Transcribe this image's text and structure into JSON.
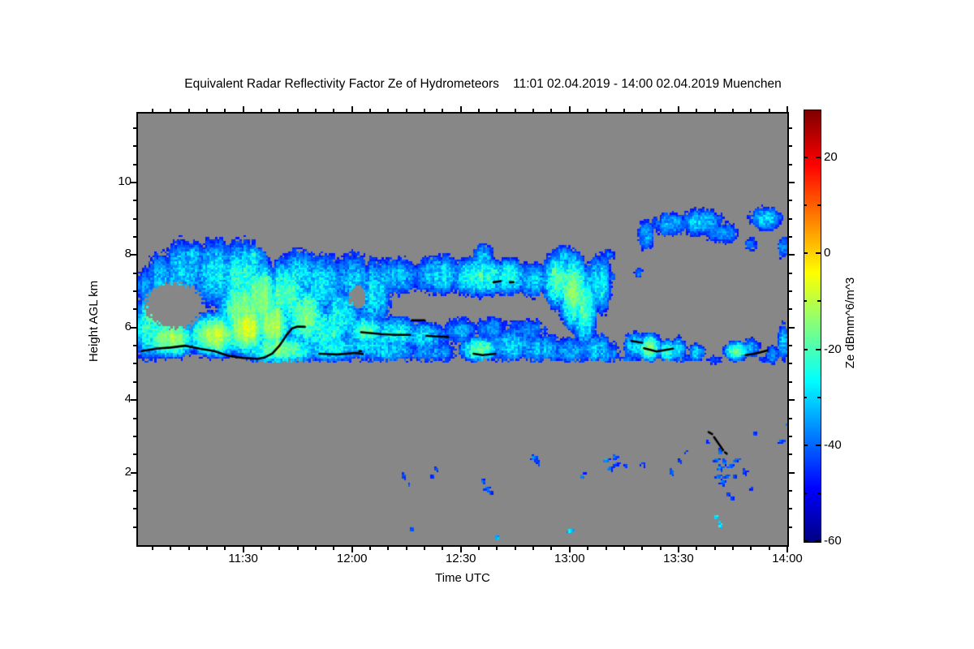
{
  "title": "Equivalent Radar Reflectivity Factor Ze of Hydrometeors    11:01 02.04.2019 - 14:00 02.04.2019 Muenchen",
  "axes": {
    "x": {
      "label": "Time UTC",
      "start": "11:01",
      "end": "14:00",
      "ticks": [
        {
          "t": 30,
          "label": "11:30"
        },
        {
          "t": 60,
          "label": "12:00"
        },
        {
          "t": 90,
          "label": "12:30"
        },
        {
          "t": 120,
          "label": "13:00"
        },
        {
          "t": 150,
          "label": "13:30"
        },
        {
          "t": 180,
          "label": "14:00"
        }
      ],
      "minor_step_minutes": 5
    },
    "y": {
      "label": "Height AGL km",
      "ticks": [
        2,
        4,
        6,
        8,
        10
      ],
      "minor_step_km": 0.5,
      "range_km": [
        0,
        11.9
      ]
    }
  },
  "colorbar": {
    "label": "Ze dBmm^6/m^3",
    "ticks": [
      20,
      0,
      -20,
      -40,
      -60
    ],
    "minor_ticks": [
      10,
      -10,
      -30,
      -50
    ],
    "vmin": -60,
    "vmax": 30,
    "colormap": "jet"
  },
  "colors": {
    "page_bg": "#ffffff",
    "plot_bg": "#878787",
    "frame": "#000000",
    "text": "#000000",
    "base_line": "#000000"
  },
  "chart_data": {
    "type": "heatmap",
    "units": "dBmm^6/m^3",
    "time_axis_minutes_after_1100": [
      1,
      180
    ],
    "height_axis_km": [
      0,
      11.9
    ],
    "echo_blobs": [
      [
        4,
        6.0,
        5,
        1.0,
        -22
      ],
      [
        3,
        7.1,
        4,
        0.55,
        -36
      ],
      [
        8,
        7.3,
        6,
        0.8,
        -33
      ],
      [
        14,
        7.6,
        7,
        0.9,
        -30
      ],
      [
        22,
        7.5,
        8,
        1.0,
        -28
      ],
      [
        30,
        7.3,
        8,
        1.2,
        -22
      ],
      [
        30,
        6.5,
        8,
        1.2,
        -14
      ],
      [
        22,
        5.8,
        9,
        0.7,
        -9
      ],
      [
        10,
        5.7,
        9,
        0.6,
        -13
      ],
      [
        31,
        6.0,
        7,
        0.9,
        -6
      ],
      [
        35,
        6.8,
        6,
        1.2,
        -12
      ],
      [
        38,
        6.1,
        6,
        1.0,
        -10
      ],
      [
        42,
        6.9,
        7,
        1.1,
        -18
      ],
      [
        47,
        6.3,
        7,
        1.0,
        -16
      ],
      [
        45,
        7.4,
        7,
        0.8,
        -28
      ],
      [
        52,
        7.2,
        6,
        0.9,
        -27
      ],
      [
        53,
        5.9,
        8,
        0.8,
        -22
      ],
      [
        57,
        6.3,
        6,
        0.9,
        -25
      ],
      [
        60,
        7.3,
        6,
        0.8,
        -31
      ],
      [
        66,
        6.9,
        5,
        1.1,
        -28
      ],
      [
        40,
        5.4,
        12,
        0.5,
        -15
      ],
      [
        55,
        5.45,
        10,
        0.45,
        -25
      ],
      [
        65,
        5.6,
        8,
        0.6,
        -28
      ],
      [
        16,
        8.0,
        4,
        0.35,
        -30
      ],
      [
        33,
        7.9,
        4,
        0.4,
        -26
      ],
      [
        64,
        7.2,
        6,
        0.5,
        -35
      ],
      [
        72,
        7.4,
        9,
        0.55,
        -33
      ],
      [
        84,
        7.45,
        8,
        0.6,
        -28
      ],
      [
        95,
        7.4,
        9,
        0.6,
        -21
      ],
      [
        96,
        7.95,
        3,
        0.4,
        -30
      ],
      [
        103,
        7.4,
        7,
        0.55,
        -25
      ],
      [
        110,
        7.3,
        6,
        0.5,
        -31
      ],
      [
        117,
        7.3,
        5,
        0.9,
        -18
      ],
      [
        118,
        7.95,
        3,
        0.35,
        -30
      ],
      [
        121,
        7.0,
        5,
        1.2,
        -14
      ],
      [
        124,
        6.6,
        4,
        1.3,
        -19
      ],
      [
        128,
        7.2,
        4,
        0.9,
        -27
      ],
      [
        64,
        5.9,
        6,
        0.5,
        -18
      ],
      [
        72,
        5.85,
        8,
        0.5,
        -26
      ],
      [
        80,
        5.75,
        7,
        0.45,
        -28
      ],
      [
        70,
        5.35,
        10,
        0.35,
        -31
      ],
      [
        82,
        5.3,
        8,
        0.3,
        -34
      ],
      [
        95,
        5.4,
        6,
        0.4,
        -16
      ],
      [
        104,
        5.5,
        8,
        0.5,
        -31
      ],
      [
        112,
        5.4,
        8,
        0.45,
        -33
      ],
      [
        120,
        5.35,
        7,
        0.4,
        -34
      ],
      [
        127,
        5.4,
        5,
        0.5,
        -31
      ],
      [
        90,
        5.9,
        5,
        0.4,
        -34
      ],
      [
        98,
        5.95,
        5,
        0.35,
        -36
      ],
      [
        108,
        5.9,
        6,
        0.35,
        -37
      ],
      [
        131,
        5.3,
        3,
        0.35,
        -36
      ],
      [
        138,
        5.5,
        3.5,
        0.4,
        -28
      ],
      [
        142,
        5.45,
        4,
        0.45,
        -15
      ],
      [
        147,
        5.35,
        3,
        0.35,
        -23
      ],
      [
        150,
        5.4,
        2.5,
        0.4,
        -27
      ],
      [
        155,
        5.3,
        2.5,
        0.3,
        -31
      ],
      [
        166,
        5.35,
        4,
        0.3,
        -17
      ],
      [
        170,
        5.45,
        2.5,
        0.3,
        -31
      ],
      [
        176,
        5.25,
        2.5,
        0.25,
        -36
      ],
      [
        179,
        5.6,
        2,
        0.55,
        -31
      ],
      [
        136,
        5.1,
        4,
        0.15,
        -41
      ],
      [
        152,
        5.15,
        3,
        0.15,
        -41
      ],
      [
        160,
        5.1,
        3,
        0.12,
        -43
      ],
      [
        174,
        5.1,
        2,
        0.12,
        -43
      ],
      [
        141,
        8.55,
        2.5,
        0.45,
        -34
      ],
      [
        148,
        8.85,
        6,
        0.35,
        -33
      ],
      [
        156,
        8.9,
        7,
        0.4,
        -31
      ],
      [
        162,
        8.6,
        5,
        0.3,
        -36
      ],
      [
        170,
        8.3,
        2,
        0.2,
        -39
      ],
      [
        174,
        9.0,
        5,
        0.35,
        -31
      ],
      [
        179,
        8.2,
        2,
        0.3,
        -37
      ],
      [
        131,
        8.0,
        1.5,
        0.2,
        -39
      ],
      [
        139,
        7.5,
        1.2,
        0.15,
        -39
      ],
      [
        131.5,
        7.4,
        1,
        0.15,
        -37
      ]
    ],
    "clear_holes": [
      [
        11,
        6.6,
        8,
        0.62
      ],
      [
        61.5,
        6.85,
        2.2,
        0.3
      ]
    ],
    "base_clip": {
      "t_max": 158,
      "z_range": [
        3.6,
        5.08
      ]
    },
    "cloud_base_lines": [
      [
        [
          2,
          5.35
        ],
        [
          6,
          5.42
        ],
        [
          10,
          5.45
        ],
        [
          14,
          5.5
        ],
        [
          18,
          5.42
        ],
        [
          22,
          5.35
        ],
        [
          26,
          5.22
        ],
        [
          30,
          5.16
        ],
        [
          34,
          5.14
        ],
        [
          36,
          5.18
        ]
      ],
      [
        [
          36,
          5.18
        ],
        [
          38,
          5.28
        ],
        [
          40,
          5.5
        ],
        [
          42,
          5.8
        ],
        [
          43.5,
          5.98
        ],
        [
          45,
          6.03
        ],
        [
          47,
          6.02
        ]
      ],
      [
        [
          51,
          5.28
        ],
        [
          56,
          5.26
        ],
        [
          61,
          5.3
        ],
        [
          63,
          5.27
        ]
      ],
      [
        [
          62,
          5.35
        ],
        [
          62.5,
          5.35
        ]
      ],
      [
        [
          62.5,
          5.87
        ],
        [
          68,
          5.82
        ],
        [
          72,
          5.8
        ],
        [
          76,
          5.8
        ]
      ],
      [
        [
          76.5,
          6.2
        ],
        [
          80,
          6.2
        ]
      ],
      [
        [
          80.5,
          5.77
        ],
        [
          86.5,
          5.74
        ]
      ],
      [
        [
          93.5,
          5.28
        ],
        [
          96,
          5.24
        ],
        [
          99.5,
          5.28
        ]
      ],
      [
        [
          99,
          7.25
        ],
        [
          101,
          7.28
        ]
      ],
      [
        [
          103.5,
          7.25
        ],
        [
          104.5,
          7.25
        ]
      ],
      [
        [
          137,
          5.63
        ],
        [
          140,
          5.58
        ]
      ],
      [
        [
          140.5,
          5.43
        ],
        [
          144,
          5.34
        ],
        [
          148.5,
          5.42
        ]
      ],
      [
        [
          168.5,
          5.24
        ],
        [
          172,
          5.3
        ],
        [
          174.5,
          5.37
        ]
      ],
      [
        [
          158.3,
          3.12
        ],
        [
          159.3,
          3.06
        ]
      ],
      [
        [
          159.8,
          2.98
        ],
        [
          162.3,
          2.62
        ]
      ],
      [
        [
          162.8,
          2.56
        ],
        [
          163.3,
          2.52
        ]
      ]
    ],
    "specks": [
      [
        41,
        1.4,
        -43
      ],
      [
        74,
        1.9,
        -40
      ],
      [
        75.5,
        1.72,
        -42
      ],
      [
        76,
        0.5,
        -40
      ],
      [
        82,
        1.95,
        -40
      ],
      [
        83,
        2.12,
        -42
      ],
      [
        96,
        1.8,
        -40
      ],
      [
        97,
        1.62,
        -40
      ],
      [
        98.3,
        1.5,
        -42
      ],
      [
        100,
        0.25,
        -33
      ],
      [
        110,
        2.45,
        -40
      ],
      [
        111,
        2.3,
        -43
      ],
      [
        120,
        0.4,
        -30
      ],
      [
        123,
        1.9,
        -40
      ],
      [
        124,
        2.0,
        -44
      ],
      [
        130,
        2.35,
        -38
      ],
      [
        131,
        2.15,
        -38
      ],
      [
        132,
        2.45,
        -40
      ],
      [
        133,
        2.25,
        -42
      ],
      [
        135,
        2.2,
        -42
      ],
      [
        140,
        2.25,
        -44
      ],
      [
        148,
        2.05,
        -40
      ],
      [
        150,
        2.3,
        -42
      ],
      [
        152,
        2.6,
        -43
      ],
      [
        158,
        2.9,
        -44
      ],
      [
        160,
        2.35,
        -38
      ],
      [
        160.5,
        1.9,
        -38
      ],
      [
        161,
        2.6,
        -40
      ],
      [
        161.5,
        2.15,
        -38
      ],
      [
        162,
        1.75,
        -40
      ],
      [
        162.5,
        2.3,
        -38
      ],
      [
        163,
        1.95,
        -40
      ],
      [
        163.5,
        1.45,
        -42
      ],
      [
        164,
        2.2,
        -40
      ],
      [
        164.5,
        1.3,
        -43
      ],
      [
        165,
        1.95,
        -42
      ],
      [
        166,
        2.4,
        -40
      ],
      [
        160,
        0.82,
        -26
      ],
      [
        161,
        0.6,
        -28
      ],
      [
        168,
        2.05,
        -42
      ],
      [
        170,
        1.6,
        -44
      ],
      [
        171,
        3.1,
        -42
      ],
      [
        178,
        2.9,
        -43
      ],
      [
        179.5,
        3.3,
        -42
      ]
    ]
  }
}
